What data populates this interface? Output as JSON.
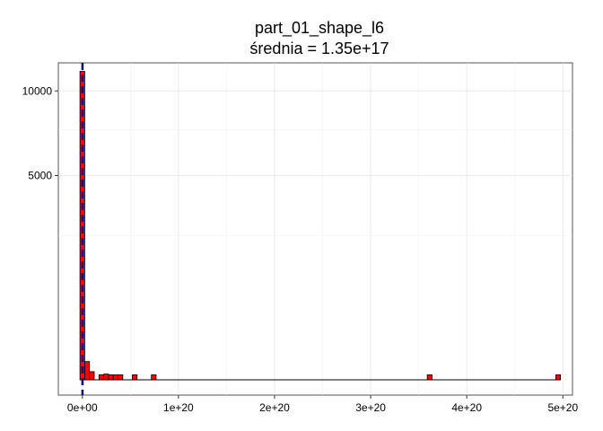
{
  "chart_data": {
    "type": "bar",
    "title": "part_01_shape_l6",
    "subtitle": "średnia = 1.35e+17",
    "xlabel": "",
    "ylabel": "",
    "xlim": [
      -2.5e+19,
      5.1e+20
    ],
    "ylim": [
      0,
      11500
    ],
    "y_scale": "sqrt",
    "x_ticks": [
      {
        "value": 0,
        "label": "0e+00"
      },
      {
        "value": 1e+20,
        "label": "1e+20"
      },
      {
        "value": 2e+20,
        "label": "2e+20"
      },
      {
        "value": 3e+20,
        "label": "3e+20"
      },
      {
        "value": 4e+20,
        "label": "4e+20"
      },
      {
        "value": 5e+20,
        "label": "5e+20"
      }
    ],
    "y_ticks": [
      {
        "value": 5000,
        "label": "5000"
      },
      {
        "value": 10000,
        "label": "10000"
      }
    ],
    "bin_width": 4.95e+18,
    "bins": [
      {
        "x": -2.5e+18,
        "count": 11400
      },
      {
        "x": 2.5e+18,
        "count": 40
      },
      {
        "x": 7.4e+18,
        "count": 8
      },
      {
        "x": 1.73e+19,
        "count": 3
      },
      {
        "x": 2.23e+19,
        "count": 4
      },
      {
        "x": 2.72e+19,
        "count": 3
      },
      {
        "x": 3.22e+19,
        "count": 3
      },
      {
        "x": 3.71e+19,
        "count": 3
      },
      {
        "x": 5.2e+19,
        "count": 3
      },
      {
        "x": 7.18e+19,
        "count": 3
      },
      {
        "x": 3.589e+20,
        "count": 3
      },
      {
        "x": 4.926e+20,
        "count": 3
      }
    ],
    "mean_line": {
      "value": 1.35e+17,
      "color": "#00008b",
      "style": "dashed"
    },
    "bar_fill": "#ff0000",
    "bar_stroke": "#000000",
    "grid": true,
    "legend": "none"
  }
}
